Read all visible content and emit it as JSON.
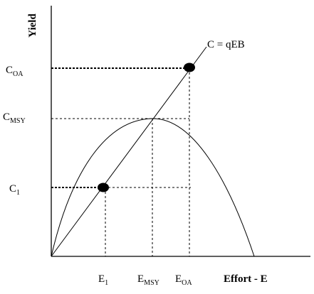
{
  "axes": {
    "y_label": "Yield",
    "x_label": "Effort - E"
  },
  "line_label": "C = qEB",
  "y_ticks": [
    {
      "main": "C",
      "sub": "OA"
    },
    {
      "main": "C",
      "sub": "MSY"
    },
    {
      "main": "C",
      "sub": "1"
    }
  ],
  "x_ticks": [
    {
      "main": "E",
      "sub": "1"
    },
    {
      "main": "E",
      "sub": "MSY"
    },
    {
      "main": "E",
      "sub": "OA"
    }
  ],
  "colors": {
    "ink": "#000000",
    "background": "#ffffff"
  }
}
